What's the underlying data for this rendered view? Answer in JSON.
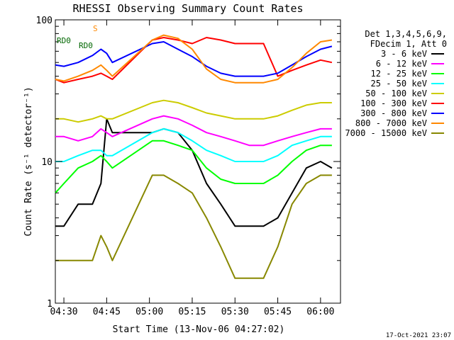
{
  "chart_data": {
    "type": "line",
    "title": "RHESSI Observing Summary Count Rates",
    "xlabel": "Start Time (13-Nov-06 04:27:02)",
    "ylabel": "Count Rate (s⁻¹ detector⁻¹)",
    "y_scale": "log",
    "ylim": [
      1,
      100
    ],
    "xlim": [
      "04:27",
      "06:07"
    ],
    "x_ticks": [
      "04:30",
      "04:45",
      "05:00",
      "05:15",
      "05:30",
      "05:45",
      "06:00"
    ],
    "y_tick_labels": [
      "1",
      "10",
      "100"
    ],
    "legend_position": "top-right",
    "legend_header": [
      "Det 1,3,4,5,6,9,",
      "FDecim 1, Att 0"
    ],
    "series": [
      {
        "name": "3 - 6 keV",
        "color": "#000000",
        "x": [
          "04:27",
          "04:30",
          "04:35",
          "04:40",
          "04:43",
          "04:45",
          "04:47",
          "05:01",
          "05:05",
          "05:10",
          "05:15",
          "05:20",
          "05:25",
          "05:30",
          "05:35",
          "05:40",
          "05:45",
          "05:50",
          "05:55",
          "06:00",
          "06:04"
        ],
        "y": [
          3.5,
          3.5,
          5,
          5,
          7,
          20,
          16,
          16,
          17,
          16,
          12,
          7,
          5,
          3.5,
          3.5,
          3.5,
          4,
          6,
          9,
          10,
          9
        ]
      },
      {
        "name": "6 - 12 keV",
        "color": "#ff00ff",
        "x": [
          "04:27",
          "04:30",
          "04:35",
          "04:40",
          "04:43",
          "04:45",
          "04:47",
          "05:01",
          "05:05",
          "05:10",
          "05:15",
          "05:20",
          "05:25",
          "05:30",
          "05:35",
          "05:40",
          "05:45",
          "05:50",
          "05:55",
          "06:00",
          "06:04"
        ],
        "y": [
          15,
          15,
          14,
          15,
          17,
          16,
          15,
          20,
          21,
          20,
          18,
          16,
          15,
          14,
          13,
          13,
          14,
          15,
          16,
          17,
          17
        ]
      },
      {
        "name": "12 - 25 keV",
        "color": "#00ff00",
        "x": [
          "04:27",
          "04:30",
          "04:35",
          "04:40",
          "04:43",
          "04:45",
          "04:47",
          "05:01",
          "05:05",
          "05:10",
          "05:15",
          "05:20",
          "05:25",
          "05:30",
          "05:35",
          "05:40",
          "05:45",
          "05:50",
          "05:55",
          "06:00",
          "06:04"
        ],
        "y": [
          6,
          7,
          9,
          10,
          11,
          10,
          9,
          14,
          14,
          13,
          12,
          9,
          7.5,
          7,
          7,
          7,
          8,
          10,
          12,
          13,
          13
        ]
      },
      {
        "name": "25 - 50 keV",
        "color": "#00ffff",
        "x": [
          "04:27",
          "04:30",
          "04:35",
          "04:40",
          "04:43",
          "04:45",
          "04:47",
          "05:01",
          "05:05",
          "05:10",
          "05:15",
          "05:20",
          "05:25",
          "05:30",
          "05:35",
          "05:40",
          "05:45",
          "05:50",
          "05:55",
          "06:00",
          "06:04"
        ],
        "y": [
          10,
          10,
          11,
          12,
          12,
          11,
          11,
          16,
          17,
          16,
          14,
          12,
          11,
          10,
          10,
          10,
          11,
          13,
          14,
          15,
          15
        ]
      },
      {
        "name": "50 - 100 keV",
        "color": "#cccc00",
        "x": [
          "04:27",
          "04:30",
          "04:35",
          "04:40",
          "04:43",
          "04:45",
          "04:47",
          "05:01",
          "05:05",
          "05:10",
          "05:15",
          "05:20",
          "05:25",
          "05:30",
          "05:35",
          "05:40",
          "05:45",
          "05:50",
          "05:55",
          "06:00",
          "06:04"
        ],
        "y": [
          20,
          20,
          19,
          20,
          21,
          20,
          20,
          26,
          27,
          26,
          24,
          22,
          21,
          20,
          20,
          20,
          21,
          23,
          25,
          26,
          26
        ]
      },
      {
        "name": "100 - 300 keV",
        "color": "#ff0000",
        "x": [
          "04:27",
          "04:30",
          "04:35",
          "04:40",
          "04:43",
          "04:45",
          "04:47",
          "05:01",
          "05:05",
          "05:10",
          "05:15",
          "05:20",
          "05:25",
          "05:30",
          "05:35",
          "05:40",
          "05:45",
          "05:50",
          "05:55",
          "06:00",
          "06:04"
        ],
        "y": [
          38,
          36,
          38,
          40,
          42,
          40,
          38,
          72,
          75,
          72,
          68,
          75,
          72,
          68,
          68,
          68,
          40,
          44,
          48,
          52,
          50
        ]
      },
      {
        "name": "300 - 800 keV",
        "color": "#0000ff",
        "x": [
          "04:27",
          "04:30",
          "04:35",
          "04:40",
          "04:43",
          "04:45",
          "04:47",
          "05:01",
          "05:05",
          "05:10",
          "05:15",
          "05:20",
          "05:25",
          "05:30",
          "05:35",
          "05:40",
          "05:45",
          "05:50",
          "05:55",
          "06:00",
          "06:04"
        ],
        "y": [
          48,
          47,
          50,
          56,
          62,
          58,
          50,
          68,
          70,
          62,
          55,
          47,
          42,
          40,
          40,
          40,
          42,
          48,
          55,
          62,
          65
        ]
      },
      {
        "name": "800 - 7000 keV",
        "color": "#ff8800",
        "x": [
          "04:27",
          "04:30",
          "04:35",
          "04:40",
          "04:43",
          "04:45",
          "04:47",
          "05:01",
          "05:05",
          "05:10",
          "05:15",
          "05:20",
          "05:25",
          "05:30",
          "05:35",
          "05:40",
          "05:45",
          "05:50",
          "05:55",
          "06:00",
          "06:04"
        ],
        "y": [
          38,
          37,
          40,
          44,
          48,
          44,
          40,
          72,
          78,
          74,
          62,
          45,
          38,
          36,
          36,
          36,
          38,
          46,
          58,
          70,
          72
        ]
      },
      {
        "name": "7000 - 15000 keV",
        "color": "#888800",
        "x": [
          "04:27",
          "04:30",
          "04:35",
          "04:40",
          "04:43",
          "04:45",
          "04:47",
          "05:01",
          "05:05",
          "05:10",
          "05:15",
          "05:20",
          "05:25",
          "05:30",
          "05:35",
          "05:40",
          "05:45",
          "05:50",
          "05:55",
          "06:00",
          "06:04"
        ],
        "y": [
          2,
          2,
          2,
          2,
          3,
          2.5,
          2,
          8,
          8,
          7,
          6,
          4,
          2.5,
          1.5,
          1.5,
          1.5,
          2.5,
          5,
          7,
          8,
          8
        ]
      }
    ],
    "annotations": [
      {
        "text": "S",
        "color": "#ff8800"
      },
      {
        "text": "RD0",
        "color": "#006600"
      },
      {
        "text": "RD0",
        "color": "#006600"
      }
    ],
    "footer": "17-Oct-2021 23:07"
  }
}
